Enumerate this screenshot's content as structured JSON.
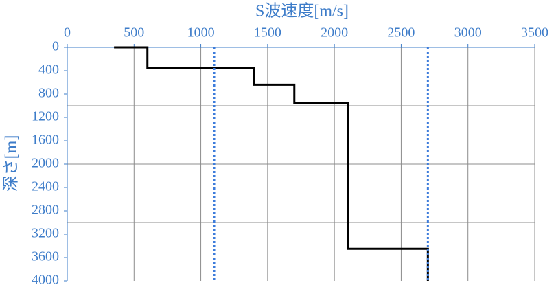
{
  "chart_data": {
    "type": "line",
    "title": "S波速度[m/s]",
    "y_label": "深さ[m]",
    "xlim": [
      0,
      3500
    ],
    "xticks": [
      0,
      500,
      1000,
      1500,
      2000,
      2500,
      3000,
      3500
    ],
    "ylim": [
      0,
      4000
    ],
    "yticks": [
      0,
      400,
      800,
      1200,
      1600,
      2000,
      2400,
      2800,
      3200,
      3600,
      4000
    ],
    "y_inverted": true,
    "x_axis_position": "top",
    "grid": true,
    "ygrid": [
      1000,
      2000,
      3000
    ],
    "series": [
      {
        "color": "#000000",
        "dashed": false,
        "x": [
          350,
          600,
          600,
          1400,
          1400,
          1700,
          1700,
          2100,
          2100,
          2700,
          2700
        ],
        "values": [
          0,
          0,
          350,
          350,
          640,
          640,
          950,
          950,
          3450,
          3450,
          4000
        ]
      },
      {
        "color": "#3d7cdb",
        "dashed": true,
        "x": [
          1100,
          1100
        ],
        "values": [
          0,
          4000
        ]
      },
      {
        "color": "#3d7cdb",
        "dashed": true,
        "x": [
          2700,
          2700
        ],
        "values": [
          0,
          4000
        ]
      }
    ]
  }
}
